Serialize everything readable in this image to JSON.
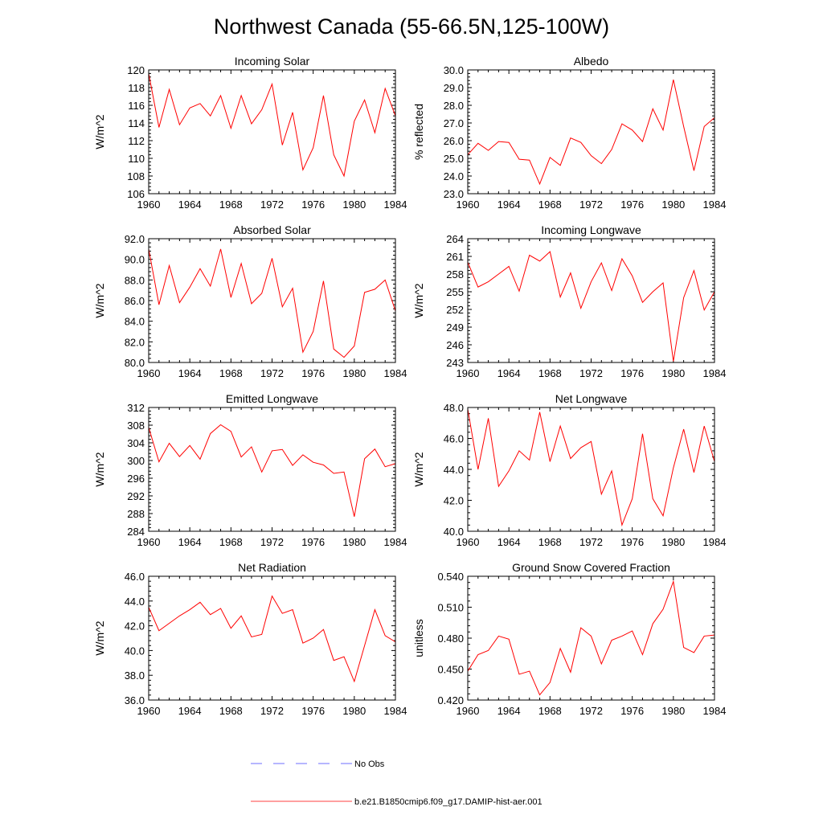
{
  "title": "Northwest Canada (55-66.5N,125-100W)",
  "legend": [
    {
      "label": "No Obs",
      "color": "#3c3cff",
      "dash": true
    },
    {
      "label": "b.e21.B1850cmip6.f09_g17.DAMIP-hist-aer.001",
      "color": "#ff0000",
      "dash": false
    }
  ],
  "chart_data": [
    {
      "type": "line",
      "title": "Incoming Solar",
      "ylabel": "W/m^2",
      "xlim": [
        1960,
        1984
      ],
      "ylim": [
        106,
        120
      ],
      "xticks": [
        1960,
        1964,
        1968,
        1972,
        1976,
        1980,
        1984
      ],
      "yticks": [
        "106",
        "108",
        "110",
        "112",
        "114",
        "116",
        "118",
        "120"
      ],
      "series": [
        {
          "color": "#ff0000",
          "x": [
            1960,
            1961,
            1962,
            1963,
            1964,
            1965,
            1966,
            1967,
            1968,
            1969,
            1970,
            1971,
            1972,
            1973,
            1974,
            1975,
            1976,
            1977,
            1978,
            1979,
            1980,
            1981,
            1982,
            1983,
            1984
          ],
          "y": [
            119.6,
            113.5,
            117.8,
            113.8,
            115.7,
            116.2,
            114.8,
            117.1,
            113.4,
            117.1,
            113.9,
            115.5,
            118.4,
            111.5,
            115.2,
            108.7,
            111.2,
            117.1,
            110.4,
            108.0,
            114.2,
            116.6,
            112.9,
            117.9,
            114.8
          ]
        }
      ]
    },
    {
      "type": "line",
      "title": "Albedo",
      "ylabel": "% reflected",
      "xlim": [
        1960,
        1984
      ],
      "ylim": [
        23.0,
        30.0
      ],
      "xticks": [
        1960,
        1964,
        1968,
        1972,
        1976,
        1980,
        1984
      ],
      "yticks": [
        "23.0",
        "24.0",
        "25.0",
        "26.0",
        "27.0",
        "28.0",
        "29.0",
        "30.0"
      ],
      "series": [
        {
          "color": "#ff0000",
          "x": [
            1960,
            1961,
            1962,
            1963,
            1964,
            1965,
            1966,
            1967,
            1968,
            1969,
            1970,
            1971,
            1972,
            1973,
            1974,
            1975,
            1976,
            1977,
            1978,
            1979,
            1980,
            1981,
            1982,
            1983,
            1984
          ],
          "y": [
            25.2,
            25.85,
            25.45,
            25.95,
            25.9,
            24.95,
            24.9,
            23.55,
            25.05,
            24.6,
            26.15,
            25.9,
            25.15,
            24.7,
            25.5,
            26.95,
            26.6,
            25.95,
            27.8,
            26.6,
            29.45,
            26.8,
            24.3,
            26.8,
            27.3
          ]
        }
      ]
    },
    {
      "type": "line",
      "title": "Absorbed Solar",
      "ylabel": "W/m^2",
      "xlim": [
        1960,
        1984
      ],
      "ylim": [
        80.0,
        92.0
      ],
      "xticks": [
        1960,
        1964,
        1968,
        1972,
        1976,
        1980,
        1984
      ],
      "yticks": [
        "80.0",
        "82.0",
        "84.0",
        "86.0",
        "88.0",
        "90.0",
        "92.0"
      ],
      "series": [
        {
          "color": "#ff0000",
          "x": [
            1960,
            1961,
            1962,
            1963,
            1964,
            1965,
            1966,
            1967,
            1968,
            1969,
            1970,
            1971,
            1972,
            1973,
            1974,
            1975,
            1976,
            1977,
            1978,
            1979,
            1980,
            1981,
            1982,
            1983,
            1984
          ],
          "y": [
            91.0,
            85.6,
            89.4,
            85.8,
            87.3,
            89.1,
            87.4,
            91.0,
            86.3,
            89.6,
            85.7,
            86.7,
            90.1,
            85.4,
            87.2,
            81.0,
            83.0,
            87.9,
            81.3,
            80.5,
            81.6,
            86.8,
            87.1,
            88.0,
            85.0
          ]
        }
      ]
    },
    {
      "type": "line",
      "title": "Incoming Longwave",
      "ylabel": "W/m^2",
      "xlim": [
        1960,
        1984
      ],
      "ylim": [
        243,
        264
      ],
      "xticks": [
        1960,
        1964,
        1968,
        1972,
        1976,
        1980,
        1984
      ],
      "yticks": [
        "243",
        "246",
        "249",
        "252",
        "255",
        "258",
        "261",
        "264"
      ],
      "series": [
        {
          "color": "#ff0000",
          "x": [
            1960,
            1961,
            1962,
            1963,
            1964,
            1965,
            1966,
            1967,
            1968,
            1969,
            1970,
            1971,
            1972,
            1973,
            1974,
            1975,
            1976,
            1977,
            1978,
            1979,
            1980,
            1981,
            1982,
            1983,
            1984
          ],
          "y": [
            260.0,
            255.8,
            256.7,
            258.0,
            259.3,
            255.1,
            261.2,
            260.2,
            261.8,
            254.1,
            258.2,
            252.2,
            256.7,
            259.9,
            255.2,
            260.6,
            257.7,
            253.2,
            255.0,
            256.5,
            243.2,
            254.0,
            258.6,
            251.9,
            255.0
          ]
        }
      ]
    },
    {
      "type": "line",
      "title": "Emitted Longwave",
      "ylabel": "W/m^2",
      "xlim": [
        1960,
        1984
      ],
      "ylim": [
        284,
        312
      ],
      "xticks": [
        1960,
        1964,
        1968,
        1972,
        1976,
        1980,
        1984
      ],
      "yticks": [
        "284",
        "288",
        "292",
        "296",
        "300",
        "304",
        "308",
        "312"
      ],
      "series": [
        {
          "color": "#ff0000",
          "x": [
            1960,
            1961,
            1962,
            1963,
            1964,
            1965,
            1966,
            1967,
            1968,
            1969,
            1970,
            1971,
            1972,
            1973,
            1974,
            1975,
            1976,
            1977,
            1978,
            1979,
            1980,
            1981,
            1982,
            1983,
            1984
          ],
          "y": [
            307.5,
            299.7,
            303.9,
            300.9,
            303.4,
            300.3,
            306.1,
            308.1,
            306.6,
            300.8,
            303.1,
            297.4,
            302.2,
            302.5,
            298.9,
            301.3,
            299.6,
            299.0,
            297.1,
            297.4,
            287.3,
            300.4,
            302.6,
            298.6,
            299.3
          ]
        }
      ]
    },
    {
      "type": "line",
      "title": "Net Longwave",
      "ylabel": "W/m^2",
      "xlim": [
        1960,
        1984
      ],
      "ylim": [
        40.0,
        48.0
      ],
      "xticks": [
        1960,
        1964,
        1968,
        1972,
        1976,
        1980,
        1984
      ],
      "yticks": [
        "40.0",
        "42.0",
        "44.0",
        "46.0",
        "48.0"
      ],
      "series": [
        {
          "color": "#ff0000",
          "x": [
            1960,
            1961,
            1962,
            1963,
            1964,
            1965,
            1966,
            1967,
            1968,
            1969,
            1970,
            1971,
            1972,
            1973,
            1974,
            1975,
            1976,
            1977,
            1978,
            1979,
            1980,
            1981,
            1982,
            1983,
            1984
          ],
          "y": [
            47.9,
            44.0,
            47.3,
            42.9,
            43.9,
            45.2,
            44.6,
            47.7,
            44.5,
            46.8,
            44.7,
            45.4,
            45.8,
            42.4,
            43.9,
            40.4,
            42.1,
            46.3,
            42.1,
            41.0,
            44.1,
            46.6,
            43.8,
            46.8,
            44.5
          ]
        }
      ]
    },
    {
      "type": "line",
      "title": "Net Radiation",
      "ylabel": "W/m^2",
      "xlim": [
        1960,
        1984
      ],
      "ylim": [
        36.0,
        46.0
      ],
      "xticks": [
        1960,
        1964,
        1968,
        1972,
        1976,
        1980,
        1984
      ],
      "yticks": [
        "36.0",
        "38.0",
        "40.0",
        "42.0",
        "44.0",
        "46.0"
      ],
      "series": [
        {
          "color": "#ff0000",
          "x": [
            1960,
            1961,
            1962,
            1963,
            1964,
            1965,
            1966,
            1967,
            1968,
            1969,
            1970,
            1971,
            1972,
            1973,
            1974,
            1975,
            1976,
            1977,
            1978,
            1979,
            1980,
            1981,
            1982,
            1983,
            1984
          ],
          "y": [
            43.5,
            41.6,
            42.2,
            42.8,
            43.3,
            43.9,
            42.9,
            43.4,
            41.8,
            42.8,
            41.1,
            41.3,
            44.4,
            43.0,
            43.3,
            40.6,
            41.0,
            41.7,
            39.2,
            39.5,
            37.5,
            40.4,
            43.3,
            41.2,
            40.7
          ]
        }
      ]
    },
    {
      "type": "line",
      "title": "Ground Snow Covered Fraction",
      "ylabel": "unitless",
      "xlim": [
        1960,
        1984
      ],
      "ylim": [
        0.42,
        0.54
      ],
      "xticks": [
        1960,
        1964,
        1968,
        1972,
        1976,
        1980,
        1984
      ],
      "yticks": [
        "0.420",
        "0.450",
        "0.480",
        "0.510",
        "0.540"
      ],
      "series": [
        {
          "color": "#ff0000",
          "x": [
            1960,
            1961,
            1962,
            1963,
            1964,
            1965,
            1966,
            1967,
            1968,
            1969,
            1970,
            1971,
            1972,
            1973,
            1974,
            1975,
            1976,
            1977,
            1978,
            1979,
            1980,
            1981,
            1982,
            1983,
            1984
          ],
          "y": [
            0.448,
            0.464,
            0.468,
            0.482,
            0.479,
            0.445,
            0.448,
            0.425,
            0.437,
            0.47,
            0.447,
            0.49,
            0.482,
            0.455,
            0.478,
            0.482,
            0.487,
            0.464,
            0.494,
            0.508,
            0.535,
            0.471,
            0.466,
            0.482,
            0.483
          ]
        }
      ]
    }
  ]
}
